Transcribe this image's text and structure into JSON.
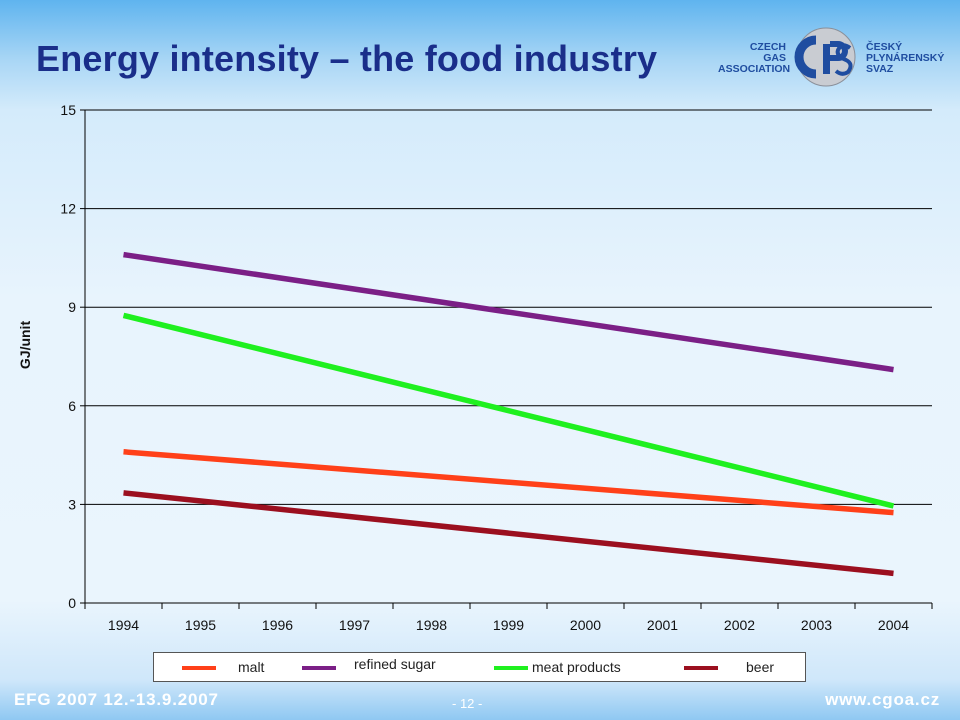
{
  "slide": {
    "title": "Energy intensity – the food industry",
    "logo": {
      "left_lines": [
        "CZECH",
        "GAS",
        "ASSOCIATION"
      ],
      "right_lines": [
        "ČESKÝ",
        "PLYNÁRENSKÝ",
        "SVAZ"
      ],
      "mark_text": "ČPS"
    },
    "footer": {
      "event": "EFG 2007   12.-13.9.2007",
      "page": "- 12 -",
      "website": "www.cgoa.cz"
    }
  },
  "chart_data": {
    "type": "line",
    "title": "",
    "xlabel": "",
    "ylabel": "GJ/unit",
    "categories": [
      "1994",
      "1995",
      "1996",
      "1997",
      "1998",
      "1999",
      "2000",
      "2001",
      "2002",
      "2003",
      "2004"
    ],
    "ylim": [
      0,
      15
    ],
    "yticks": [
      0,
      3,
      6,
      9,
      12,
      15
    ],
    "grid": true,
    "legend_position": "bottom",
    "series": [
      {
        "name": "malt",
        "color": "#ff4019",
        "x": [
          1994,
          2004
        ],
        "y": [
          4.6,
          2.75
        ]
      },
      {
        "name": "refined sugar",
        "color": "#7b1f86",
        "x": [
          1994,
          2004
        ],
        "y": [
          10.6,
          7.1
        ]
      },
      {
        "name": "meat products",
        "color": "#1ff01f",
        "x": [
          1994,
          2004
        ],
        "y": [
          8.75,
          2.95
        ]
      },
      {
        "name": "beer",
        "color": "#9b0f1f",
        "x": [
          1994,
          2004
        ],
        "y": [
          3.35,
          0.9
        ]
      }
    ]
  }
}
